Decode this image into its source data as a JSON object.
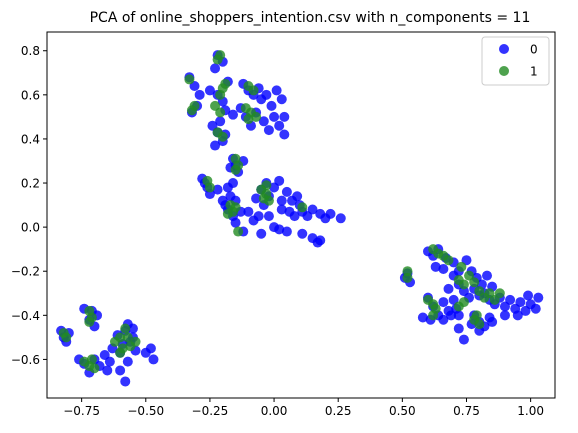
{
  "chart_data": {
    "type": "scatter",
    "title": "PCA of online_shoppers_intention.csv with n_components = 11",
    "xlabel": "",
    "ylabel": "",
    "xlim": [
      -0.885,
      1.095
    ],
    "ylim": [
      -0.775,
      0.885
    ],
    "xticks": [
      -0.75,
      -0.5,
      -0.25,
      0.0,
      0.25,
      0.5,
      0.75,
      1.0
    ],
    "xtick_labels": [
      "−0.75",
      "−0.50",
      "−0.25",
      "0.00",
      "0.25",
      "0.50",
      "0.75",
      "1.00"
    ],
    "yticks": [
      -0.6,
      -0.4,
      -0.2,
      0.0,
      0.2,
      0.4,
      0.6,
      0.8
    ],
    "ytick_labels": [
      "−0.6",
      "−0.4",
      "−0.2",
      "0.0",
      "0.2",
      "0.4",
      "0.6",
      "0.8"
    ],
    "grid": false,
    "legend_position": "top-right",
    "series": [
      {
        "name": "0",
        "color": "#0000ff",
        "points": [
          [
            -0.83,
            -0.47
          ],
          [
            -0.82,
            -0.5
          ],
          [
            -0.81,
            -0.52
          ],
          [
            -0.8,
            -0.48
          ],
          [
            -0.76,
            -0.6
          ],
          [
            -0.74,
            -0.62
          ],
          [
            -0.72,
            -0.66
          ],
          [
            -0.7,
            -0.6
          ],
          [
            -0.68,
            -0.63
          ],
          [
            -0.66,
            -0.58
          ],
          [
            -0.65,
            -0.65
          ],
          [
            -0.64,
            -0.61
          ],
          [
            -0.74,
            -0.37
          ],
          [
            -0.72,
            -0.42
          ],
          [
            -0.71,
            -0.38
          ],
          [
            -0.7,
            -0.45
          ],
          [
            -0.69,
            -0.4
          ],
          [
            -0.63,
            -0.55
          ],
          [
            -0.61,
            -0.49
          ],
          [
            -0.6,
            -0.57
          ],
          [
            -0.59,
            -0.53
          ],
          [
            -0.58,
            -0.47
          ],
          [
            -0.57,
            -0.61
          ],
          [
            -0.56,
            -0.52
          ],
          [
            -0.55,
            -0.5
          ],
          [
            -0.54,
            -0.56
          ],
          [
            -0.6,
            -0.65
          ],
          [
            -0.58,
            -0.7
          ],
          [
            -0.5,
            -0.57
          ],
          [
            -0.48,
            -0.55
          ],
          [
            -0.47,
            -0.6
          ],
          [
            -0.57,
            -0.44
          ],
          [
            -0.55,
            -0.46
          ],
          [
            -0.33,
            0.68
          ],
          [
            -0.31,
            0.64
          ],
          [
            -0.3,
            0.55
          ],
          [
            -0.32,
            0.52
          ],
          [
            -0.29,
            0.6
          ],
          [
            -0.22,
            0.78
          ],
          [
            -0.2,
            0.75
          ],
          [
            -0.23,
            0.72
          ],
          [
            -0.25,
            0.62
          ],
          [
            -0.22,
            0.6
          ],
          [
            -0.2,
            0.57
          ],
          [
            -0.18,
            0.66
          ],
          [
            -0.19,
            0.53
          ],
          [
            -0.21,
            0.48
          ],
          [
            -0.16,
            0.51
          ],
          [
            -0.12,
            0.65
          ],
          [
            -0.1,
            0.62
          ],
          [
            -0.08,
            0.6
          ],
          [
            -0.06,
            0.63
          ],
          [
            -0.05,
            0.58
          ],
          [
            -0.03,
            0.6
          ],
          [
            -0.01,
            0.55
          ],
          [
            0.01,
            0.62
          ],
          [
            0.03,
            0.58
          ],
          [
            0.04,
            0.5
          ],
          [
            -0.13,
            0.54
          ],
          [
            -0.11,
            0.5
          ],
          [
            -0.09,
            0.46
          ],
          [
            -0.07,
            0.52
          ],
          [
            -0.04,
            0.48
          ],
          [
            -0.02,
            0.44
          ],
          [
            0.0,
            0.5
          ],
          [
            0.02,
            0.46
          ],
          [
            0.04,
            0.42
          ],
          [
            -0.24,
            0.46
          ],
          [
            -0.22,
            0.43
          ],
          [
            -0.2,
            0.39
          ],
          [
            -0.23,
            0.37
          ],
          [
            -0.19,
            0.42
          ],
          [
            -0.16,
            0.31
          ],
          [
            -0.15,
            0.28
          ],
          [
            -0.14,
            0.25
          ],
          [
            -0.17,
            0.27
          ],
          [
            -0.12,
            0.3
          ],
          [
            -0.28,
            0.22
          ],
          [
            -0.26,
            0.18
          ],
          [
            -0.25,
            0.15
          ],
          [
            -0.27,
            0.2
          ],
          [
            -0.2,
            0.12
          ],
          [
            -0.18,
            0.08
          ],
          [
            -0.16,
            0.05
          ],
          [
            -0.17,
            0.14
          ],
          [
            -0.19,
            0.1
          ],
          [
            -0.15,
            0.12
          ],
          [
            -0.15,
            0.02
          ],
          [
            -0.13,
            0.07
          ],
          [
            -0.07,
            0.13
          ],
          [
            -0.05,
            0.17
          ],
          [
            -0.03,
            0.2
          ],
          [
            -0.02,
            0.14
          ],
          [
            0.0,
            0.18
          ],
          [
            0.02,
            0.21
          ],
          [
            0.03,
            0.12
          ],
          [
            0.05,
            0.16
          ],
          [
            0.07,
            0.12
          ],
          [
            0.09,
            0.14
          ],
          [
            0.1,
            0.1
          ],
          [
            -0.1,
            0.07
          ],
          [
            -0.08,
            0.03
          ],
          [
            -0.06,
            0.05
          ],
          [
            -0.04,
            0.1
          ],
          [
            -0.02,
            0.05
          ],
          [
            0.0,
            0.0
          ],
          [
            0.03,
            0.08
          ],
          [
            0.06,
            0.07
          ],
          [
            0.08,
            0.05
          ],
          [
            0.11,
            0.07
          ],
          [
            0.13,
            0.05
          ],
          [
            0.15,
            0.08
          ],
          [
            0.18,
            0.06
          ],
          [
            0.2,
            0.04
          ],
          [
            0.22,
            0.06
          ],
          [
            0.26,
            0.04
          ],
          [
            -0.12,
            -0.02
          ],
          [
            -0.05,
            -0.03
          ],
          [
            0.02,
            -0.01
          ],
          [
            0.05,
            -0.02
          ],
          [
            0.11,
            -0.03
          ],
          [
            0.15,
            -0.05
          ],
          [
            0.17,
            -0.07
          ],
          [
            0.18,
            -0.06
          ],
          [
            -0.18,
            0.18
          ],
          [
            -0.16,
            0.2
          ],
          [
            -0.22,
            0.17
          ],
          [
            0.52,
            -0.21
          ],
          [
            0.53,
            -0.25
          ],
          [
            0.51,
            -0.23
          ],
          [
            0.6,
            -0.11
          ],
          [
            0.62,
            -0.13
          ],
          [
            0.64,
            -0.1
          ],
          [
            0.67,
            -0.14
          ],
          [
            0.7,
            -0.16
          ],
          [
            0.72,
            -0.2
          ],
          [
            0.66,
            -0.19
          ],
          [
            0.63,
            -0.18
          ],
          [
            0.75,
            -0.15
          ],
          [
            0.77,
            -0.2
          ],
          [
            0.79,
            -0.23
          ],
          [
            0.81,
            -0.26
          ],
          [
            0.83,
            -0.22
          ],
          [
            0.85,
            -0.27
          ],
          [
            0.7,
            -0.22
          ],
          [
            0.72,
            -0.26
          ],
          [
            0.74,
            -0.29
          ],
          [
            0.68,
            -0.28
          ],
          [
            0.76,
            -0.32
          ],
          [
            0.78,
            -0.28
          ],
          [
            0.8,
            -0.31
          ],
          [
            0.82,
            -0.3
          ],
          [
            0.84,
            -0.33
          ],
          [
            0.86,
            -0.35
          ],
          [
            0.88,
            -0.32
          ],
          [
            0.9,
            -0.36
          ],
          [
            0.92,
            -0.33
          ],
          [
            0.94,
            -0.37
          ],
          [
            0.96,
            -0.34
          ],
          [
            0.98,
            -0.38
          ],
          [
            1.0,
            -0.35
          ],
          [
            1.02,
            -0.37
          ],
          [
            1.03,
            -0.32
          ],
          [
            0.99,
            -0.31
          ],
          [
            0.6,
            -0.32
          ],
          [
            0.62,
            -0.36
          ],
          [
            0.64,
            -0.4
          ],
          [
            0.66,
            -0.34
          ],
          [
            0.68,
            -0.38
          ],
          [
            0.7,
            -0.33
          ],
          [
            0.72,
            -0.4
          ],
          [
            0.71,
            -0.37
          ],
          [
            0.58,
            -0.41
          ],
          [
            0.61,
            -0.42
          ],
          [
            0.66,
            -0.42
          ],
          [
            0.78,
            -0.4
          ],
          [
            0.8,
            -0.43
          ],
          [
            0.82,
            -0.45
          ],
          [
            0.84,
            -0.41
          ],
          [
            0.8,
            -0.47
          ],
          [
            0.77,
            -0.44
          ],
          [
            0.85,
            -0.43
          ],
          [
            0.74,
            -0.51
          ],
          [
            0.72,
            -0.46
          ],
          [
            0.69,
            -0.4
          ],
          [
            0.9,
            -0.4
          ],
          [
            0.95,
            -0.4
          ]
        ]
      },
      {
        "name": "1",
        "color": "#228b22",
        "points": [
          [
            -0.82,
            -0.48
          ],
          [
            -0.81,
            -0.5
          ],
          [
            -0.74,
            -0.61
          ],
          [
            -0.72,
            -0.63
          ],
          [
            -0.71,
            -0.6
          ],
          [
            -0.7,
            -0.64
          ],
          [
            -0.72,
            -0.38
          ],
          [
            -0.71,
            -0.41
          ],
          [
            -0.72,
            -0.43
          ],
          [
            -0.62,
            -0.52
          ],
          [
            -0.6,
            -0.5
          ],
          [
            -0.59,
            -0.55
          ],
          [
            -0.57,
            -0.5
          ],
          [
            -0.56,
            -0.54
          ],
          [
            -0.54,
            -0.52
          ],
          [
            -0.6,
            -0.57
          ],
          [
            -0.58,
            -0.46
          ],
          [
            -0.33,
            0.67
          ],
          [
            -0.31,
            0.55
          ],
          [
            -0.32,
            0.53
          ],
          [
            -0.21,
            0.78
          ],
          [
            -0.22,
            0.76
          ],
          [
            -0.2,
            0.63
          ],
          [
            -0.21,
            0.6
          ],
          [
            -0.19,
            0.65
          ],
          [
            -0.23,
            0.55
          ],
          [
            -0.21,
            0.52
          ],
          [
            -0.22,
            0.43
          ],
          [
            -0.2,
            0.41
          ],
          [
            -0.1,
            0.64
          ],
          [
            -0.08,
            0.62
          ],
          [
            -0.11,
            0.54
          ],
          [
            -0.09,
            0.52
          ],
          [
            -0.07,
            0.5
          ],
          [
            -0.1,
            0.49
          ],
          [
            -0.15,
            0.31
          ],
          [
            -0.14,
            0.28
          ],
          [
            -0.15,
            0.26
          ],
          [
            -0.26,
            0.21
          ],
          [
            -0.25,
            0.18
          ],
          [
            -0.17,
            0.1
          ],
          [
            -0.16,
            0.07
          ],
          [
            -0.18,
            0.06
          ],
          [
            -0.15,
            0.09
          ],
          [
            -0.14,
            -0.02
          ],
          [
            -0.05,
            0.17
          ],
          [
            -0.03,
            0.15
          ],
          [
            -0.02,
            0.12
          ],
          [
            -0.04,
            0.13
          ],
          [
            -0.03,
            0.19
          ],
          [
            0.11,
            0.09
          ],
          [
            0.52,
            -0.2
          ],
          [
            0.52,
            -0.23
          ],
          [
            0.62,
            -0.1
          ],
          [
            0.64,
            -0.12
          ],
          [
            0.66,
            -0.13
          ],
          [
            0.68,
            -0.15
          ],
          [
            0.73,
            -0.18
          ],
          [
            0.72,
            -0.24
          ],
          [
            0.74,
            -0.26
          ],
          [
            0.76,
            -0.22
          ],
          [
            0.78,
            -0.25
          ],
          [
            0.8,
            -0.29
          ],
          [
            0.82,
            -0.32
          ],
          [
            0.84,
            -0.3
          ],
          [
            0.86,
            -0.33
          ],
          [
            0.88,
            -0.3
          ],
          [
            0.6,
            -0.33
          ],
          [
            0.62,
            -0.35
          ],
          [
            0.63,
            -0.37
          ],
          [
            0.62,
            -0.4
          ],
          [
            0.72,
            -0.36
          ],
          [
            0.74,
            -0.34
          ],
          [
            0.78,
            -0.42
          ],
          [
            0.8,
            -0.44
          ],
          [
            0.79,
            -0.4
          ]
        ]
      }
    ]
  }
}
